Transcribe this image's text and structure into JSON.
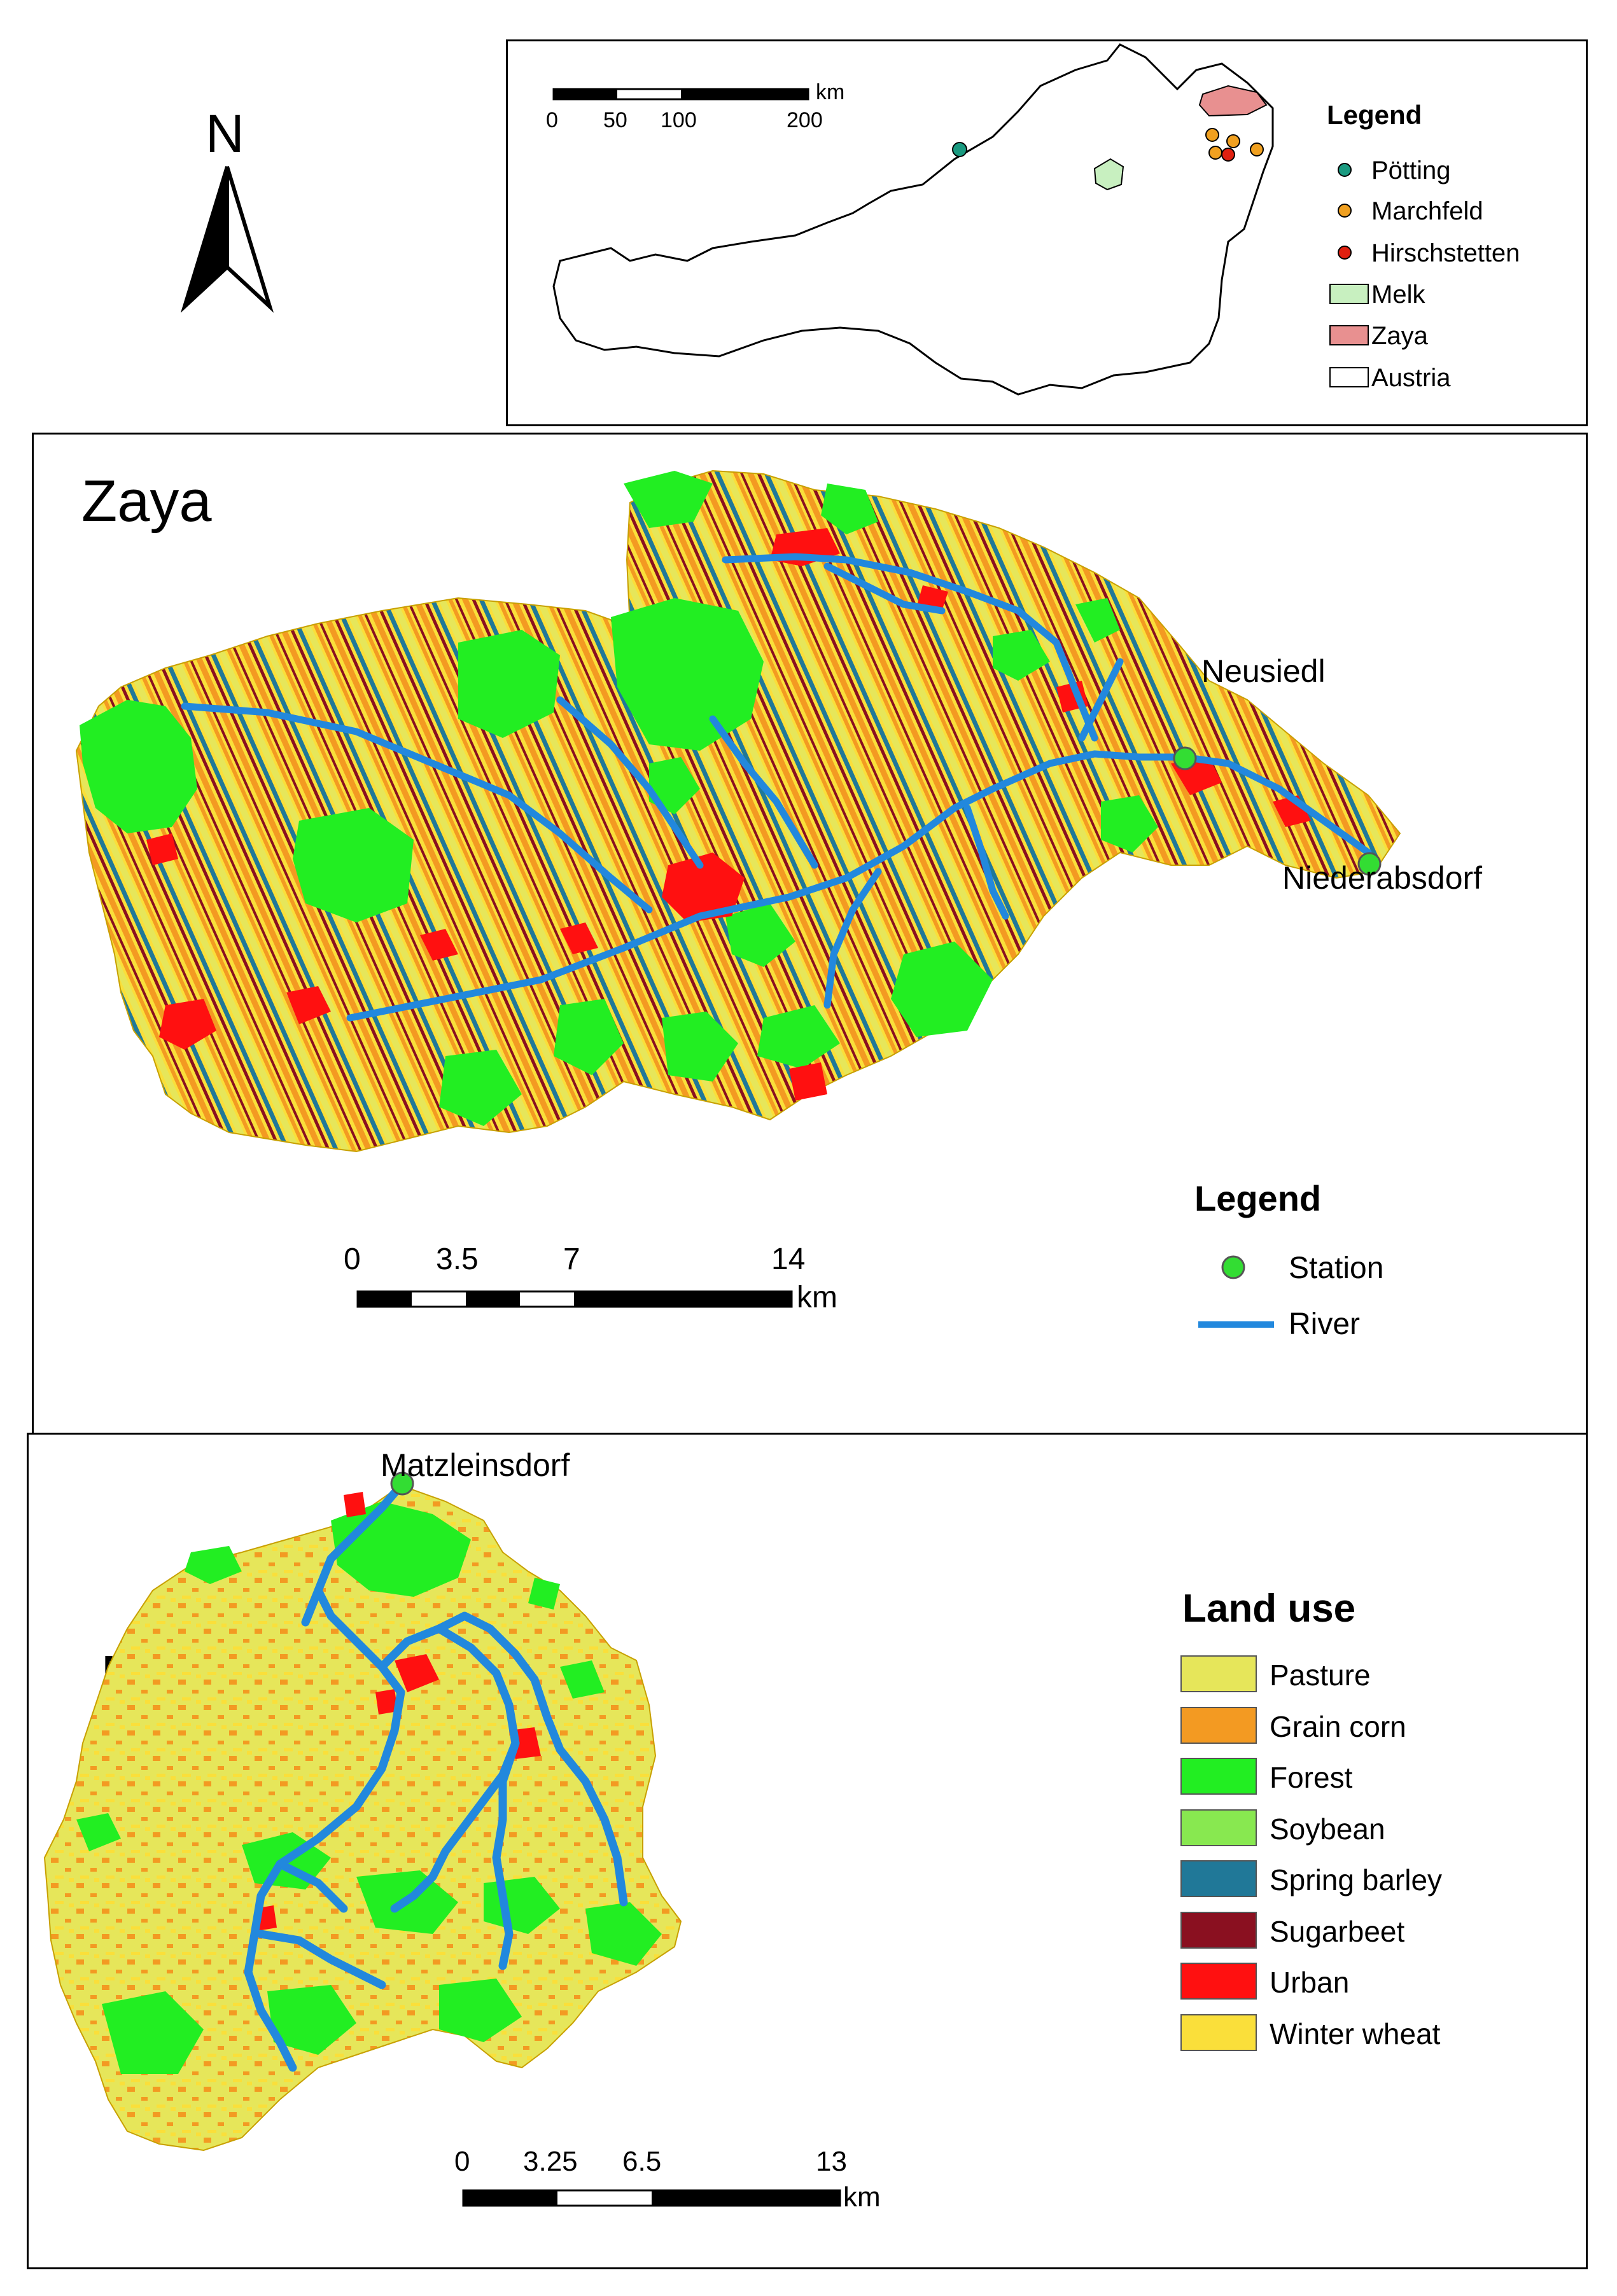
{
  "north_arrow": {
    "label": "N"
  },
  "inset_map": {
    "scale": {
      "ticks": [
        "0",
        "50",
        "100",
        "200"
      ],
      "unit": "km"
    },
    "legend": {
      "title": "Legend",
      "items": [
        {
          "label": "Pötting",
          "symbol": "dot",
          "color": "#1a9a80"
        },
        {
          "label": "Marchfeld",
          "symbol": "dot",
          "color": "#f0a020"
        },
        {
          "label": "Hirschstetten",
          "symbol": "dot",
          "color": "#e02010"
        },
        {
          "label": "Melk",
          "symbol": "box",
          "color": "#c8f0c0"
        },
        {
          "label": "Zaya",
          "symbol": "box",
          "color": "#e89090"
        },
        {
          "label": "Austria",
          "symbol": "box",
          "color": "#ffffff"
        }
      ]
    }
  },
  "zaya_map": {
    "title": "Zaya",
    "stations": [
      "Neusiedl",
      "Niederabsdorf"
    ],
    "scale": {
      "ticks": [
        "0",
        "3.5",
        "7",
        "14"
      ],
      "unit": "km"
    },
    "legend": {
      "title": "Legend",
      "items": [
        {
          "label": "Station",
          "symbol": "station",
          "color": "#33dd33"
        },
        {
          "label": "River",
          "symbol": "line",
          "color": "#2288dd"
        }
      ]
    }
  },
  "melk_map": {
    "title": "Melk",
    "stations": [
      "Matzleinsdorf"
    ],
    "scale": {
      "ticks": [
        "0",
        "3.25",
        "6.5",
        "13"
      ],
      "unit": "km"
    }
  },
  "land_use_legend": {
    "title": "Land use",
    "items": [
      {
        "label": "Pasture",
        "color": "#e6e65a"
      },
      {
        "label": "Grain corn",
        "color": "#f39a22"
      },
      {
        "label": "Forest",
        "color": "#22ee22"
      },
      {
        "label": "Soybean",
        "color": "#88e850"
      },
      {
        "label": "Spring barley",
        "color": "#207898"
      },
      {
        "label": "Sugarbeet",
        "color": "#8a1020"
      },
      {
        "label": "Urban",
        "color": "#ff1010"
      },
      {
        "label": "Winter wheat",
        "color": "#fadf3a"
      }
    ]
  }
}
